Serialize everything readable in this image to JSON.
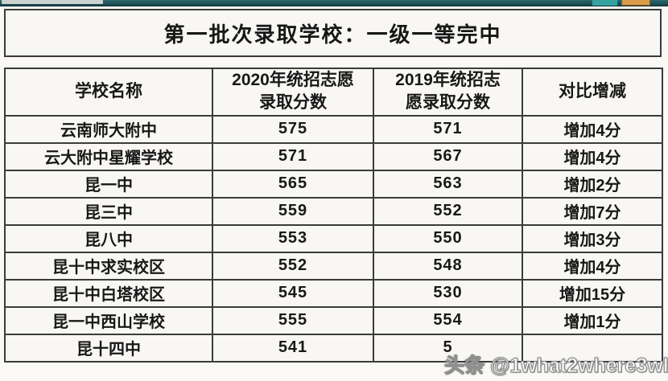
{
  "title": "第一批次录取学校：一级一等完中",
  "table": {
    "columns": [
      "学校名称",
      "2020年统招志愿\n录取分数",
      "2019年统招志\n愿录取分数",
      "对比增减"
    ],
    "rows": [
      {
        "school": "云南师大附中",
        "score_2020": "575",
        "score_2019": "571",
        "diff": "增加4分"
      },
      {
        "school": "云大附中星耀学校",
        "score_2020": "571",
        "score_2019": "567",
        "diff": "增加4分"
      },
      {
        "school": "昆一中",
        "score_2020": "565",
        "score_2019": "563",
        "diff": "增加2分"
      },
      {
        "school": "昆三中",
        "score_2020": "559",
        "score_2019": "552",
        "diff": "增加7分"
      },
      {
        "school": "昆八中",
        "score_2020": "553",
        "score_2019": "550",
        "diff": "增加3分"
      },
      {
        "school": "昆十中求实校区",
        "score_2020": "552",
        "score_2019": "548",
        "diff": "增加4分"
      },
      {
        "school": "昆十中白塔校区",
        "score_2020": "545",
        "score_2019": "530",
        "diff": "增加15分"
      },
      {
        "school": "昆一中西山学校",
        "score_2020": "555",
        "score_2019": "554",
        "diff": "增加1分"
      },
      {
        "school": "昆十四中",
        "score_2020": "541",
        "score_2019": "5",
        "diff": ""
      }
    ]
  },
  "watermark": {
    "text": "头条 @1what2where3who"
  },
  "colors": {
    "top_bar": "#16454b",
    "top_bar_teal_segment": "#35a2a0",
    "top_bar_orange_segment": "#d89b4a",
    "table_border": "#3b3b3b",
    "table_background": "#f8f7f4",
    "text": "#181818",
    "watermark_fill": "#ffffff",
    "watermark_outline": "#8f8f8f"
  }
}
